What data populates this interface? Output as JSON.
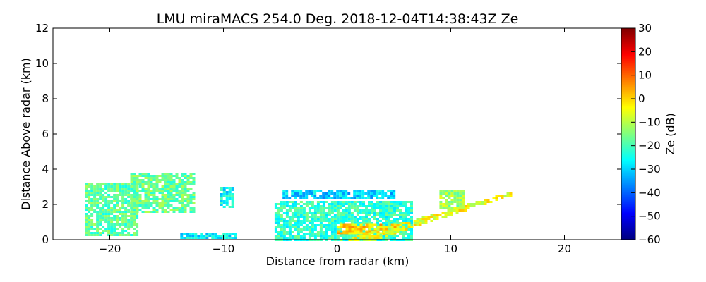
{
  "chart_data": {
    "type": "heatmap",
    "title": "LMU miraMACS 254.0 Deg. 2018-12-04T14:38:43Z  Ze",
    "xlabel": "Distance from radar (km)",
    "ylabel": "Distance Above radar  (km)",
    "xlim": [
      -25,
      25
    ],
    "ylim": [
      0,
      12
    ],
    "x_ticks": [
      -20,
      -10,
      0,
      10,
      20
    ],
    "x_tick_labels": [
      "−20",
      "−10",
      "0",
      "10",
      "20"
    ],
    "y_ticks": [
      0,
      2,
      4,
      6,
      8,
      10,
      12
    ],
    "y_tick_labels": [
      "0",
      "2",
      "4",
      "6",
      "8",
      "10",
      "12"
    ],
    "grid": false,
    "colorbar": {
      "label": "Ze (dB)",
      "colormap": "jet",
      "range": [
        -60,
        30
      ],
      "ticks": [
        30,
        20,
        10,
        0,
        -10,
        -20,
        -30,
        -40,
        -50,
        -60
      ],
      "tick_labels": [
        "30",
        "20",
        "10",
        "0",
        "−10",
        "−20",
        "−30",
        "−40",
        "−50",
        "−60"
      ]
    },
    "regions": [
      {
        "name": "far-left echo column",
        "x": [
          -22.2,
          -17.5
        ],
        "y": [
          0.3,
          3.2
        ],
        "ze_db": -18
      },
      {
        "name": "left elevated echo",
        "x": [
          -18.2,
          -12.5
        ],
        "y": [
          1.6,
          3.8
        ],
        "ze_db": -17
      },
      {
        "name": "small echo near -10 km",
        "x": [
          -10.3,
          -9.3
        ],
        "y": [
          1.9,
          3.0
        ],
        "ze_db": -26
      },
      {
        "name": "low speckles",
        "x": [
          -13.8,
          -9.0
        ],
        "y": [
          0.1,
          0.4
        ],
        "ze_db": -27
      },
      {
        "name": "upper echo layer",
        "x": [
          -4.8,
          5.0
        ],
        "y": [
          2.4,
          2.8
        ],
        "ze_db": -30
      },
      {
        "name": "main echo body",
        "x": [
          -5.5,
          6.5
        ],
        "y": [
          0.0,
          2.2
        ],
        "ze_db": -22
      },
      {
        "name": "strong echo near surface",
        "x": [
          0.0,
          5.0
        ],
        "y": [
          0.3,
          0.9
        ],
        "ze_db": 0
      },
      {
        "name": "slanted beam echo",
        "x": [
          0.0,
          15.2
        ],
        "y": [
          0.0,
          2.8
        ],
        "ze_db": -5
      },
      {
        "name": "echo cluster near 10 km",
        "x": [
          9.0,
          11.2
        ],
        "y": [
          1.8,
          2.8
        ],
        "ze_db": -12
      }
    ]
  }
}
